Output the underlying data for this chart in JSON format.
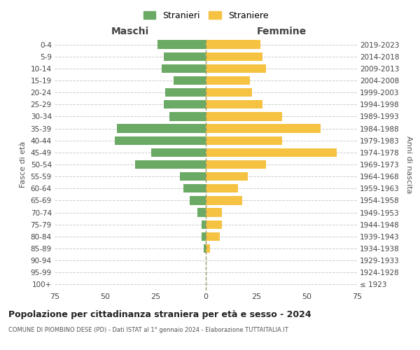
{
  "age_groups": [
    "100+",
    "95-99",
    "90-94",
    "85-89",
    "80-84",
    "75-79",
    "70-74",
    "65-69",
    "60-64",
    "55-59",
    "50-54",
    "45-49",
    "40-44",
    "35-39",
    "30-34",
    "25-29",
    "20-24",
    "15-19",
    "10-14",
    "5-9",
    "0-4"
  ],
  "birth_years": [
    "≤ 1923",
    "1924-1928",
    "1929-1933",
    "1934-1938",
    "1939-1943",
    "1944-1948",
    "1949-1953",
    "1954-1958",
    "1959-1963",
    "1964-1968",
    "1969-1973",
    "1974-1978",
    "1979-1983",
    "1984-1988",
    "1989-1993",
    "1994-1998",
    "1999-2003",
    "2004-2008",
    "2009-2013",
    "2014-2018",
    "2019-2023"
  ],
  "maschi": [
    0,
    0,
    0,
    1,
    2,
    2,
    4,
    8,
    11,
    13,
    35,
    27,
    45,
    44,
    18,
    21,
    20,
    16,
    22,
    21,
    24
  ],
  "femmine": [
    0,
    0,
    0,
    2,
    7,
    8,
    8,
    18,
    16,
    21,
    30,
    65,
    38,
    57,
    38,
    28,
    23,
    22,
    30,
    28,
    27
  ],
  "color_maschi": "#6aaa64",
  "color_femmine": "#f5c242",
  "title": "Popolazione per cittadinanza straniera per età e sesso - 2024",
  "subtitle": "COMUNE DI PIOMBINO DESE (PD) - Dati ISTAT al 1° gennaio 2024 - Elaborazione TUTTAITALIA.IT",
  "xlabel_left": "Maschi",
  "xlabel_right": "Femmine",
  "ylabel_left": "Fasce di età",
  "ylabel_right": "Anni di nascita",
  "legend_maschi": "Stranieri",
  "legend_femmine": "Straniere",
  "xlim": 75,
  "background_color": "#ffffff",
  "grid_color": "#cccccc"
}
